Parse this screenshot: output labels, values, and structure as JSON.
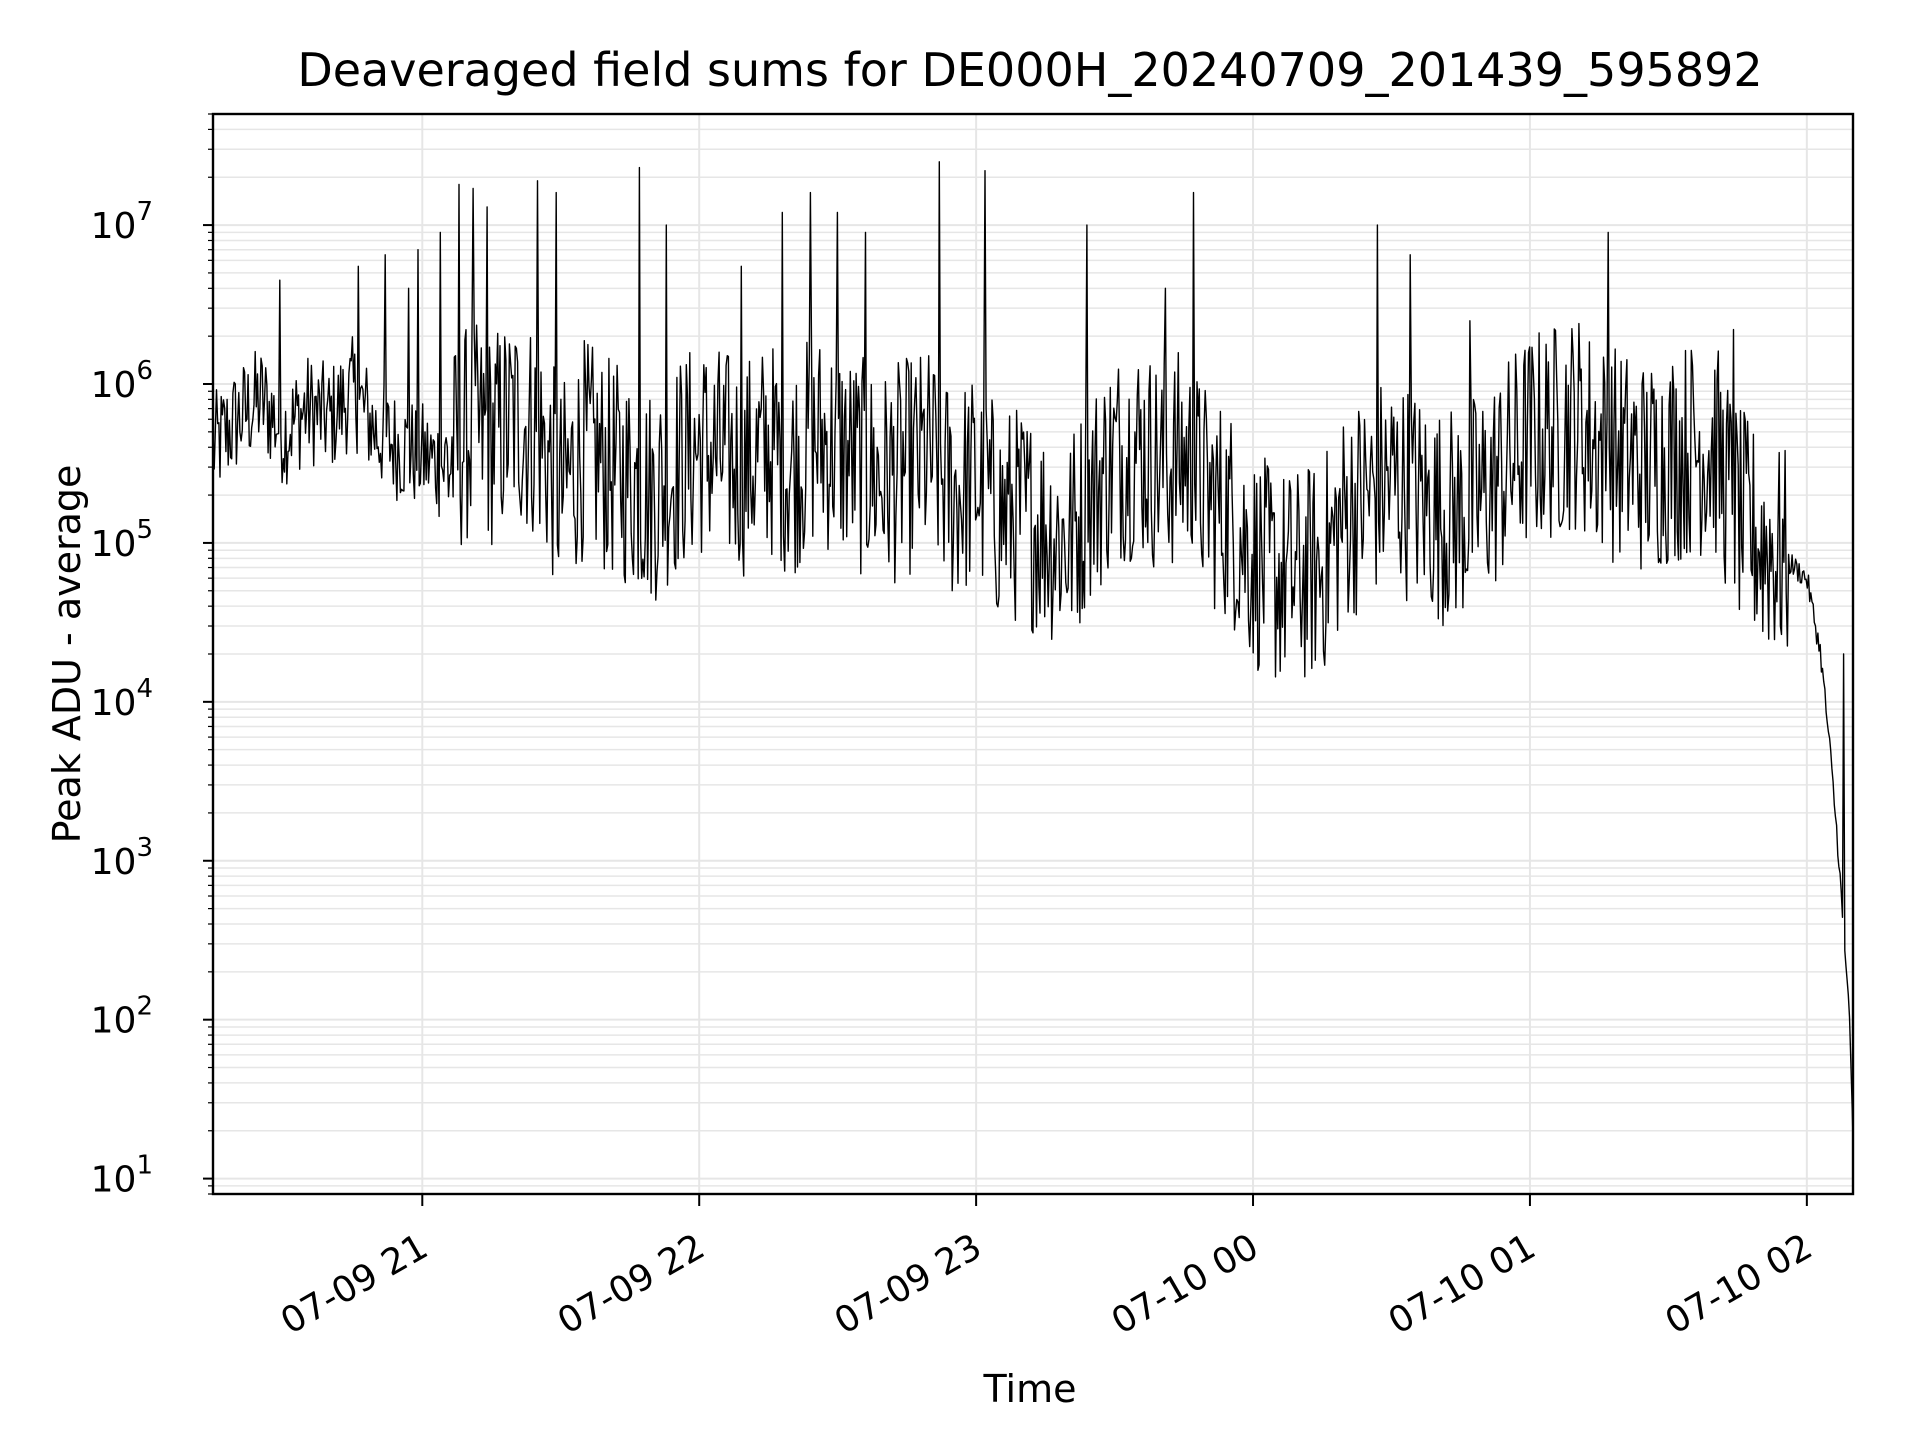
{
  "chart_data": {
    "type": "line",
    "title": "Deaveraged field sums for DE000H_20240709_201439_595892",
    "xlabel": "Time",
    "ylabel": "Peak ADU - average",
    "yscale": "log",
    "ylim": [
      8,
      50000000
    ],
    "xlim": [
      "2024-07-09 20:14:39",
      "2024-07-10 02:10:00"
    ],
    "x_ticks": [
      {
        "t": "2024-07-09 21:00",
        "label": "07-09 21"
      },
      {
        "t": "2024-07-09 22:00",
        "label": "07-09 22"
      },
      {
        "t": "2024-07-09 23:00",
        "label": "07-09 23"
      },
      {
        "t": "2024-07-10 00:00",
        "label": "07-10 00"
      },
      {
        "t": "2024-07-10 01:00",
        "label": "07-10 01"
      },
      {
        "t": "2024-07-10 02:00",
        "label": "07-10 02"
      }
    ],
    "y_ticks": [
      {
        "value": 10,
        "exponent": "1"
      },
      {
        "value": 100,
        "exponent": "2"
      },
      {
        "value": 1000,
        "exponent": "3"
      },
      {
        "value": 10000,
        "exponent": "4"
      },
      {
        "value": 100000,
        "exponent": "5"
      },
      {
        "value": 1000000,
        "exponent": "6"
      },
      {
        "value": 10000000,
        "exponent": "7"
      }
    ],
    "y_tick_base": "10",
    "grid": true,
    "line_color": "#000000",
    "grid_color": "#e6e6e6",
    "series": [
      {
        "x": [
          "2024-07-09 20:15",
          "2024-07-09 20:20",
          "2024-07-09 20:25",
          "2024-07-09 20:30",
          "2024-07-09 20:35",
          "2024-07-09 20:40",
          "2024-07-09 20:45",
          "2024-07-09 20:50",
          "2024-07-09 20:55",
          "2024-07-09 21:00",
          "2024-07-09 21:05",
          "2024-07-09 21:10",
          "2024-07-09 21:15",
          "2024-07-09 21:20",
          "2024-07-09 21:25",
          "2024-07-09 21:30",
          "2024-07-09 21:35",
          "2024-07-09 21:40",
          "2024-07-09 21:45",
          "2024-07-09 21:50",
          "2024-07-09 21:55",
          "2024-07-09 22:00",
          "2024-07-09 22:05",
          "2024-07-09 22:10",
          "2024-07-09 22:15",
          "2024-07-09 22:20",
          "2024-07-09 22:25",
          "2024-07-09 22:30",
          "2024-07-09 22:35",
          "2024-07-09 22:40",
          "2024-07-09 22:45",
          "2024-07-09 22:50",
          "2024-07-09 22:55",
          "2024-07-09 23:00",
          "2024-07-09 23:05",
          "2024-07-09 23:10",
          "2024-07-09 23:15",
          "2024-07-09 23:20",
          "2024-07-09 23:25",
          "2024-07-09 23:30",
          "2024-07-09 23:35",
          "2024-07-09 23:40",
          "2024-07-09 23:45",
          "2024-07-09 23:50",
          "2024-07-09 23:55",
          "2024-07-10 00:00",
          "2024-07-10 00:05",
          "2024-07-10 00:10",
          "2024-07-10 00:15",
          "2024-07-10 00:20",
          "2024-07-10 00:25",
          "2024-07-10 00:30",
          "2024-07-10 00:35",
          "2024-07-10 00:40",
          "2024-07-10 00:45",
          "2024-07-10 00:50",
          "2024-07-10 00:55",
          "2024-07-10 01:00",
          "2024-07-10 01:05",
          "2024-07-10 01:10",
          "2024-07-10 01:15",
          "2024-07-10 01:20",
          "2024-07-10 01:25",
          "2024-07-10 01:30",
          "2024-07-10 01:35",
          "2024-07-10 01:40",
          "2024-07-10 01:45",
          "2024-07-10 01:50",
          "2024-07-10 01:55",
          "2024-07-10 02:00",
          "2024-07-10 02:03",
          "2024-07-10 02:05",
          "2024-07-10 02:07",
          "2024-07-10 02:08",
          "2024-07-10 02:09",
          "2024-07-10 02:10"
        ],
        "y": [
          400000,
          600000,
          800000,
          500000,
          700000,
          600000,
          900000,
          500000,
          400000,
          350000,
          300000,
          500000,
          450000,
          600000,
          500000,
          200000,
          400000,
          300000,
          250000,
          200000,
          300000,
          400000,
          350000,
          300000,
          400000,
          300000,
          450000,
          400000,
          300000,
          250000,
          300000,
          350000,
          200000,
          250000,
          150000,
          150000,
          120000,
          100000,
          200000,
          350000,
          400000,
          300000,
          350000,
          200000,
          150000,
          80000,
          60000,
          60000,
          70000,
          150000,
          200000,
          250000,
          200000,
          150000,
          150000,
          200000,
          300000,
          450000,
          500000,
          600000,
          400000,
          350000,
          300000,
          350000,
          400000,
          400000,
          150000,
          100000,
          80000,
          60000,
          20000,
          5000,
          1000,
          300,
          150,
          18
        ]
      }
    ],
    "spikes": [
      {
        "x": "2024-07-09 20:29",
        "y": 4500000
      },
      {
        "x": "2024-07-09 20:46",
        "y": 5500000
      },
      {
        "x": "2024-07-09 20:52",
        "y": 6500000
      },
      {
        "x": "2024-07-09 20:57",
        "y": 4000000
      },
      {
        "x": "2024-07-09 20:59",
        "y": 7000000
      },
      {
        "x": "2024-07-09 21:04",
        "y": 9000000
      },
      {
        "x": "2024-07-09 21:08",
        "y": 18000000
      },
      {
        "x": "2024-07-09 21:11",
        "y": 17000000
      },
      {
        "x": "2024-07-09 21:14",
        "y": 13000000
      },
      {
        "x": "2024-07-09 21:25",
        "y": 19000000
      },
      {
        "x": "2024-07-09 21:29",
        "y": 16000000
      },
      {
        "x": "2024-07-09 21:47",
        "y": 23000000
      },
      {
        "x": "2024-07-09 21:53",
        "y": 10000000
      },
      {
        "x": "2024-07-09 22:09",
        "y": 5500000
      },
      {
        "x": "2024-07-09 22:18",
        "y": 12000000
      },
      {
        "x": "2024-07-09 22:24",
        "y": 16000000
      },
      {
        "x": "2024-07-09 22:30",
        "y": 12000000
      },
      {
        "x": "2024-07-09 22:36",
        "y": 9000000
      },
      {
        "x": "2024-07-09 22:52",
        "y": 25000000
      },
      {
        "x": "2024-07-09 23:02",
        "y": 22000000
      },
      {
        "x": "2024-07-09 23:24",
        "y": 10000000
      },
      {
        "x": "2024-07-09 23:41",
        "y": 4000000
      },
      {
        "x": "2024-07-09 23:47",
        "y": 16000000
      },
      {
        "x": "2024-07-10 00:27",
        "y": 10000000
      },
      {
        "x": "2024-07-10 00:34",
        "y": 6500000
      },
      {
        "x": "2024-07-10 00:47",
        "y": 2500000
      },
      {
        "x": "2024-07-10 01:17",
        "y": 9000000
      },
      {
        "x": "2024-07-10 01:44",
        "y": 2200000
      },
      {
        "x": "2024-07-10 02:08",
        "y": 20000
      }
    ]
  }
}
